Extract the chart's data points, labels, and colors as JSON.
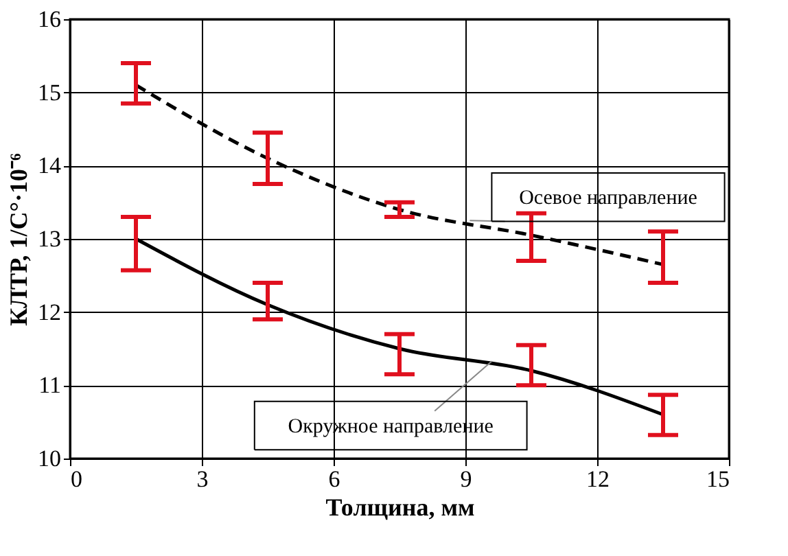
{
  "chart_data": {
    "type": "line",
    "xlabel": "Толщина, мм",
    "ylabel": "КЛТР, 1/C°·10⁻⁶",
    "x": [
      1.5,
      4.5,
      7.5,
      10.5,
      13.5
    ],
    "series": [
      {
        "name": "Осевое направление",
        "color": "#000000",
        "line_style": "dashed",
        "values": [
          15.1,
          14.1,
          13.4,
          13.05,
          12.65
        ],
        "errors": [
          [
            14.85,
            15.4
          ],
          [
            13.75,
            14.45
          ],
          [
            13.3,
            13.5
          ],
          [
            12.7,
            13.35
          ],
          [
            12.4,
            13.1
          ]
        ]
      },
      {
        "name": "Окружное направление",
        "color": "#000000",
        "line_style": "solid",
        "values": [
          13.0,
          12.1,
          11.5,
          11.2,
          10.6
        ],
        "errors": [
          [
            12.57,
            13.3
          ],
          [
            11.9,
            12.4
          ],
          [
            11.15,
            11.7
          ],
          [
            11.0,
            11.55
          ],
          [
            10.32,
            10.87
          ]
        ]
      }
    ],
    "xlim": [
      0,
      15
    ],
    "xticks": [
      0,
      3,
      6,
      9,
      12,
      15
    ],
    "ylim": [
      10,
      16
    ],
    "yticks": [
      10,
      11,
      12,
      13,
      14,
      15,
      16
    ],
    "grid": true,
    "legend": false,
    "marker": "none"
  }
}
